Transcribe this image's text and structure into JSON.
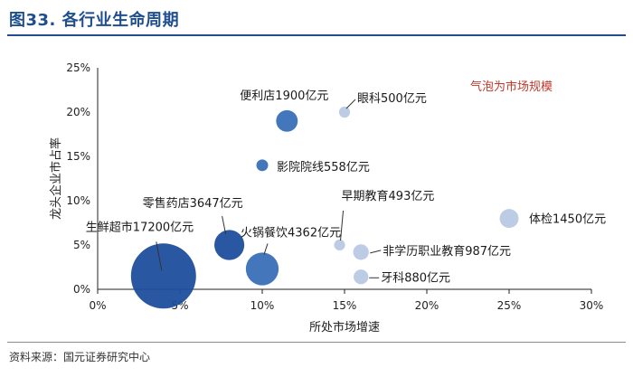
{
  "figure": {
    "title": "图33. 各行业生命周期",
    "source": "资料来源：国元证券研究中心"
  },
  "chart_data": {
    "type": "scatter",
    "subtype": "bubble",
    "xlabel": "所处市场增速",
    "ylabel": "龙头企业市占率",
    "xlim": [
      0,
      30
    ],
    "ylim": [
      0,
      25
    ],
    "x_ticks": [
      "0%",
      "5%",
      "10%",
      "15%",
      "20%",
      "25%",
      "30%"
    ],
    "y_ticks": [
      "0%",
      "5%",
      "10%",
      "15%",
      "20%",
      "25%"
    ],
    "annotation": "气泡为市场规模",
    "grid": false,
    "points": [
      {
        "label": "生鲜超市17200亿元",
        "x": 4,
        "y": 1.5,
        "size": 17200,
        "color": "#1f4e9c"
      },
      {
        "label": "零售药店3647亿元",
        "x": 8,
        "y": 5,
        "size": 3647,
        "color": "#1f4e9c"
      },
      {
        "label": "火锅餐饮4362亿元",
        "x": 10,
        "y": 2.3,
        "size": 4362,
        "color": "#3a6fb8"
      },
      {
        "label": "便利店1900亿元",
        "x": 11.5,
        "y": 19,
        "size": 1900,
        "color": "#3a6fb8"
      },
      {
        "label": "影院院线558亿元",
        "x": 10,
        "y": 14,
        "size": 558,
        "color": "#3a6fb8"
      },
      {
        "label": "眼科500亿元",
        "x": 15,
        "y": 20,
        "size": 500,
        "color": "#b7c9e3"
      },
      {
        "label": "早期教育493亿元",
        "x": 14.7,
        "y": 5,
        "size": 493,
        "color": "#b7c9e3"
      },
      {
        "label": "非学历职业教育987亿元",
        "x": 16,
        "y": 4.2,
        "size": 987,
        "color": "#b7c9e3"
      },
      {
        "label": "牙科880亿元",
        "x": 16,
        "y": 1.4,
        "size": 880,
        "color": "#b7c9e3"
      },
      {
        "label": "体检1450亿元",
        "x": 25,
        "y": 8,
        "size": 1450,
        "color": "#b7c9e3"
      }
    ]
  }
}
